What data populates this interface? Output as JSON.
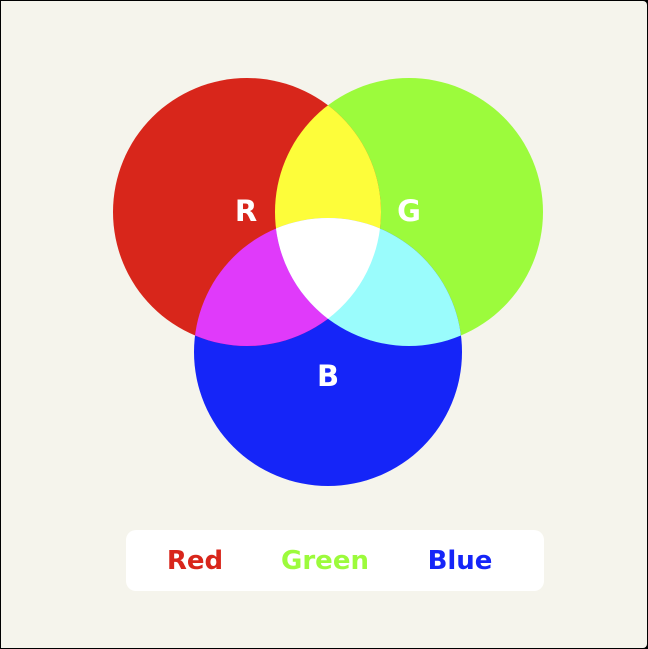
{
  "diagram": {
    "circles": [
      {
        "id": "red",
        "label": "R",
        "color": "#d8261b"
      },
      {
        "id": "green",
        "label": "G",
        "color": "#9cfb3c"
      },
      {
        "id": "blue",
        "label": "B",
        "color": "#1525f8"
      }
    ],
    "overlaps": {
      "red_green": "#fdfd3a",
      "red_blue": "#e03afa",
      "green_blue": "#9afcfc",
      "all": "#ffffff"
    },
    "background": "#f5f4ec"
  },
  "legend": {
    "items": [
      {
        "label": "Red",
        "color": "#d8261b"
      },
      {
        "label": "Green",
        "color": "#9cfb3c"
      },
      {
        "label": "Blue",
        "color": "#1525f8"
      }
    ]
  }
}
